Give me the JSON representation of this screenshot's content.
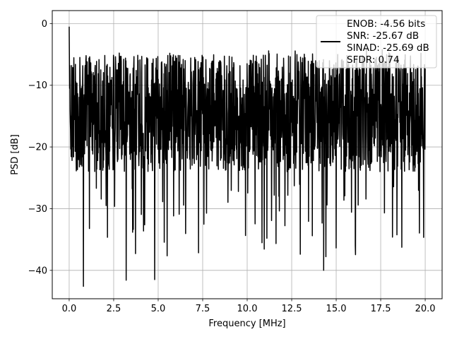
{
  "chart_data": {
    "type": "line",
    "title": "",
    "xlabel": "Frequency [MHz]",
    "ylabel": "PSD [dB]",
    "xlim": [
      -0.95,
      20.95
    ],
    "ylim": [
      -44.6,
      2.1
    ],
    "grid": true,
    "legend_position": "top-right",
    "x_ticks": [
      0.0,
      2.5,
      5.0,
      7.5,
      10.0,
      12.5,
      15.0,
      17.5,
      20.0
    ],
    "x_tick_labels": [
      "0.0",
      "2.5",
      "5.0",
      "7.5",
      "10.0",
      "12.5",
      "15.0",
      "17.5",
      "20.0"
    ],
    "y_ticks": [
      0,
      -10,
      -20,
      -30,
      -40
    ],
    "y_tick_labels": [
      "0",
      "−10",
      "−20",
      "−30",
      "−40"
    ],
    "series": [
      {
        "name": "ENOB: -4.56 bits\nSNR: -25.67 dB\nSINAD: -25.69 dB\nSFDR: 0.74",
        "legend_lines": [
          "ENOB: -4.56 bits",
          "SNR: -25.67 dB",
          "SINAD: -25.69 dB",
          "SFDR: 0.74"
        ],
        "color": "#000000",
        "x_range": [
          0,
          20
        ],
        "point_count": 1600,
        "start_peak_db": -0.5,
        "typical_band_db": [
          -22,
          -7
        ],
        "max_db": -0.5,
        "min_db": -42.6,
        "notable_dips": [
          {
            "x": 0.8,
            "y": -42.6
          },
          {
            "x": 3.2,
            "y": -41.6
          },
          {
            "x": 4.8,
            "y": -41.5
          },
          {
            "x": 14.3,
            "y": -40.0
          }
        ]
      }
    ]
  }
}
